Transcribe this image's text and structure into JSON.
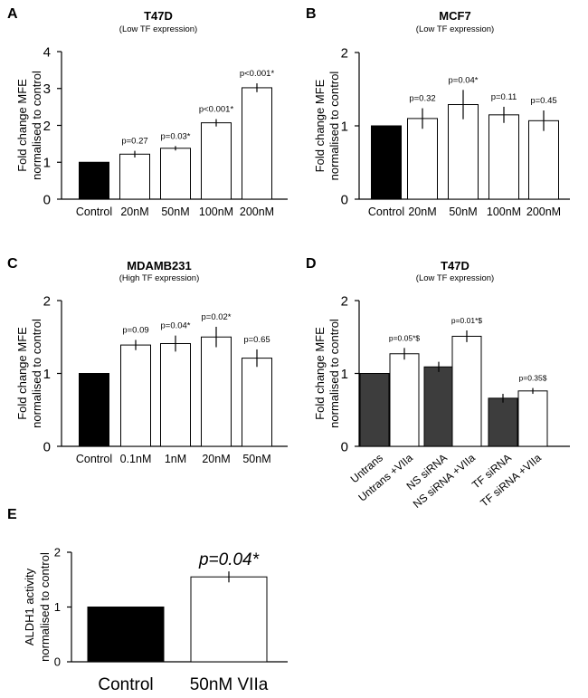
{
  "chart_data": [
    {
      "panel": "A",
      "type": "bar",
      "title": "T47D",
      "subtitle": "(Low TF expression)",
      "ylabel": [
        "Fold change MFE",
        "normalised to control"
      ],
      "ylim": [
        0,
        4
      ],
      "yticks": [
        0,
        1,
        2,
        3,
        4
      ],
      "categories": [
        "Control",
        "20nM",
        "50nM",
        "100nM",
        "200nM"
      ],
      "values": [
        1.0,
        1.22,
        1.38,
        2.07,
        3.02
      ],
      "errors": [
        0,
        0.09,
        0.06,
        0.1,
        0.12
      ],
      "bar_colors": [
        "#000000",
        "#ffffff",
        "#ffffff",
        "#ffffff",
        "#ffffff"
      ],
      "annotations": [
        "",
        "p=0.27",
        "p=0.03*",
        "p<0.001*",
        "p<0.001*"
      ]
    },
    {
      "panel": "B",
      "type": "bar",
      "title": "MCF7",
      "subtitle": "(Low TF expression)",
      "ylabel": [
        "Fold change MFE",
        "normalised to control"
      ],
      "ylim": [
        0,
        2
      ],
      "yticks": [
        0,
        1,
        2
      ],
      "categories": [
        "Control",
        "20nM",
        "50nM",
        "100nM",
        "200nM"
      ],
      "values": [
        1.0,
        1.1,
        1.29,
        1.15,
        1.07
      ],
      "errors": [
        0,
        0.14,
        0.2,
        0.11,
        0.14
      ],
      "bar_colors": [
        "#000000",
        "#ffffff",
        "#ffffff",
        "#ffffff",
        "#ffffff"
      ],
      "annotations": [
        "",
        "p=0.32",
        "p=0.04*",
        "p=0.11",
        "p=0.45"
      ]
    },
    {
      "panel": "C",
      "type": "bar",
      "title": "MDAMB231",
      "subtitle": "(High TF expression)",
      "ylabel": [
        "Fold change MFE",
        "normalised to control"
      ],
      "ylim": [
        0,
        2
      ],
      "yticks": [
        0,
        1,
        2
      ],
      "categories": [
        "Control",
        "0.1nM",
        "1nM",
        "20nM",
        "50nM"
      ],
      "values": [
        1.0,
        1.39,
        1.41,
        1.5,
        1.21
      ],
      "errors": [
        0,
        0.07,
        0.11,
        0.14,
        0.12
      ],
      "bar_colors": [
        "#000000",
        "#ffffff",
        "#ffffff",
        "#ffffff",
        "#ffffff"
      ],
      "annotations": [
        "",
        "p=0.09",
        "p=0.04*",
        "p=0.02*",
        "p=0.65"
      ]
    },
    {
      "panel": "D",
      "type": "bar",
      "title": "T47D",
      "subtitle": "(Low TF expression)",
      "ylabel": [
        "Fold change MFE",
        "normalised to control"
      ],
      "ylim": [
        0,
        2
      ],
      "yticks": [
        0,
        1,
        2
      ],
      "categories": [
        "Untrans",
        "Untrans +VIIa",
        "NS siRNA",
        "NS siRNA +VIIa",
        "TF siRNA",
        "TF siRNA +VIIa"
      ],
      "values": [
        1.0,
        1.27,
        1.09,
        1.51,
        0.66,
        0.76
      ],
      "errors": [
        0,
        0.08,
        0.07,
        0.08,
        0.06,
        0.04
      ],
      "bar_colors": [
        "#3d3d3d",
        "#ffffff",
        "#3d3d3d",
        "#ffffff",
        "#3d3d3d",
        "#ffffff"
      ],
      "annotations": [
        "",
        "p=0.05*$",
        "",
        "p=0.01*$",
        "",
        "p=0.35$"
      ]
    },
    {
      "panel": "E",
      "type": "bar",
      "ylabel": [
        "ALDH1 activity",
        "normalised to control"
      ],
      "ylim": [
        0,
        2
      ],
      "yticks": [
        0,
        1,
        2
      ],
      "categories": [
        "Control",
        "50nM VIIa"
      ],
      "values": [
        1.0,
        1.55
      ],
      "errors": [
        0,
        0.1
      ],
      "bar_colors": [
        "#000000",
        "#ffffff"
      ],
      "annotations": [
        "",
        "p=0.04*"
      ]
    }
  ]
}
